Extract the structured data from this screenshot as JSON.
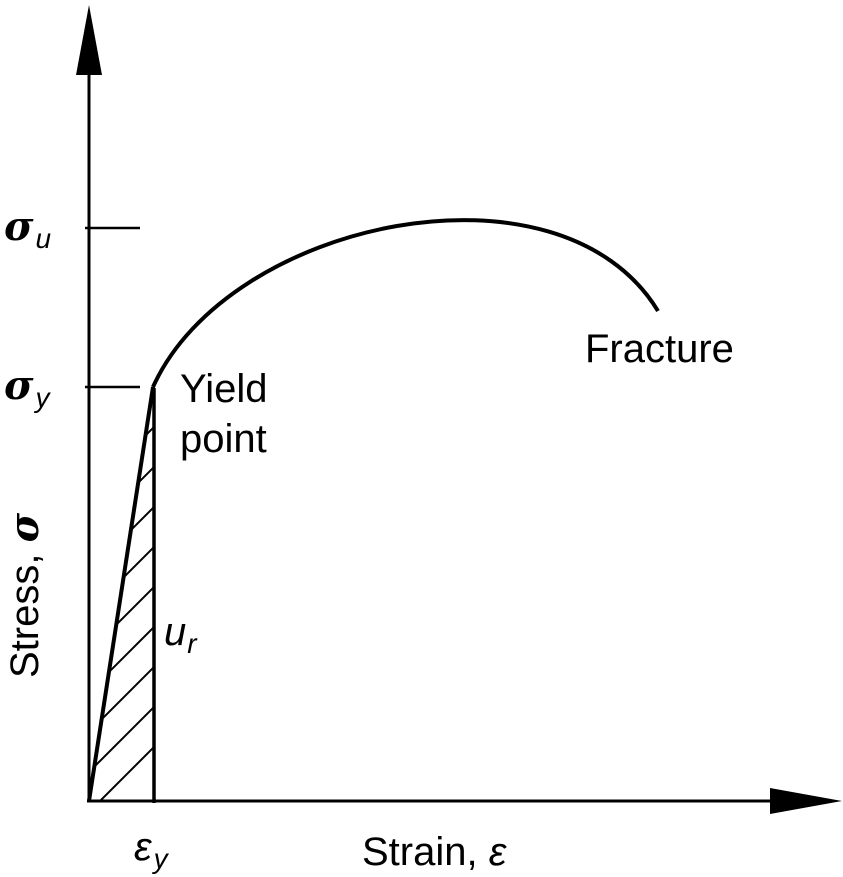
{
  "diagram": {
    "title": "",
    "y_axis_label": "Stress, ",
    "y_axis_symbol": "σ",
    "x_axis_label": "Strain, ",
    "x_axis_symbol": "ε",
    "y_ticks": {
      "ultimate": {
        "symbol": "σ",
        "subscript": "u"
      },
      "yield": {
        "symbol": "σ",
        "subscript": "y"
      }
    },
    "x_ticks": {
      "yield_strain": {
        "symbol": "ε",
        "subscript": "y"
      }
    },
    "annotations": {
      "yield_point_line1": "Yield",
      "yield_point_line2": "point",
      "fracture": "Fracture",
      "resilience_symbol": "u",
      "resilience_subscript": "r"
    },
    "colors": {
      "line": "#000000",
      "background": "#ffffff"
    }
  }
}
